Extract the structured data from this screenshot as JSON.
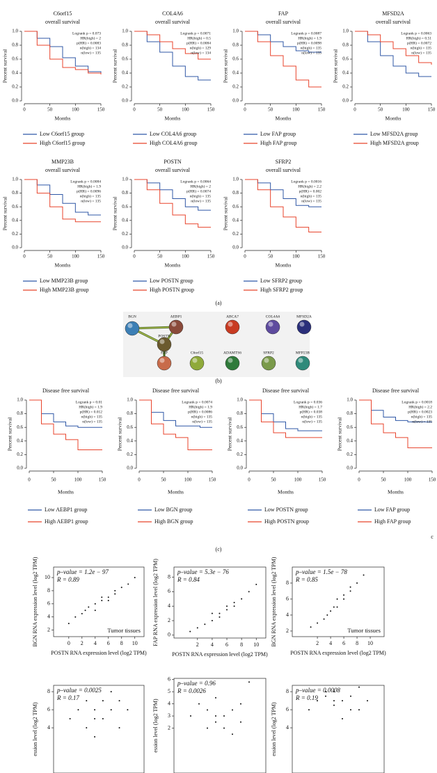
{
  "panels": [
    "(a)",
    "(b)",
    "(c)",
    "c"
  ],
  "network": {
    "nodes": [
      "BGN",
      "AEBP1",
      "ABCA7",
      "COL4A6",
      "MFSD2A",
      "POSTN",
      "FAP",
      "C6orf15",
      "ADAMTS6",
      "SFRP2",
      "MFP23B"
    ]
  },
  "chart_data": [
    {
      "type": "km",
      "title": "C6orf15",
      "subtitle": "overall survival",
      "x_label": "Months",
      "y_label": "Percent survival",
      "stats": [
        "Logrank p = 0.073",
        "HR(high) = 2",
        "p(HR) = 0.0083",
        "n(high) = 134",
        "n(low) = 135"
      ],
      "x": [
        0,
        25,
        50,
        75,
        100,
        125,
        150
      ],
      "xlim": [
        0,
        150
      ],
      "xticks": [
        0,
        50,
        100,
        150
      ],
      "ylim": [
        0,
        1
      ],
      "yticks": [
        {
          "value": 0,
          "label": "0.0"
        },
        0.2,
        0.4,
        0.6,
        0.8,
        {
          "value": 1,
          "label": "1.0"
        }
      ],
      "series": [
        {
          "name": "Low C6orf15 group",
          "color": "#2f57a6",
          "values": [
            1,
            0.9,
            0.78,
            0.62,
            0.5,
            0.42,
            0.4
          ]
        },
        {
          "name": "High C6orf15 group",
          "color": "#e8432b",
          "values": [
            1,
            0.8,
            0.6,
            0.48,
            0.45,
            0.4,
            0.38
          ]
        }
      ]
    },
    {
      "type": "km",
      "title": "COL4A6",
      "subtitle": "overall survival",
      "x_label": "Months",
      "y_label": "Percent survival",
      "stats": [
        "Logrank p = 0.0071",
        "HR(high) = 0.5",
        "p(HR) = 0.0084",
        "n(high) = 129",
        "n(low) = 134"
      ],
      "x": [
        0,
        25,
        50,
        75,
        100,
        125,
        150
      ],
      "xlim": [
        0,
        150
      ],
      "xticks": [
        0,
        50,
        100,
        150
      ],
      "ylim": [
        0,
        1
      ],
      "yticks": [
        {
          "value": 0,
          "label": "0.0"
        },
        0.2,
        0.4,
        0.6,
        0.8,
        {
          "value": 1,
          "label": "1.0"
        }
      ],
      "series": [
        {
          "name": "Low COL4A6 group",
          "color": "#2f57a6",
          "values": [
            1,
            0.85,
            0.7,
            0.5,
            0.35,
            0.3,
            0.3
          ]
        },
        {
          "name": "High COL4A6 group",
          "color": "#e8432b",
          "values": [
            1,
            0.95,
            0.85,
            0.75,
            0.68,
            0.6,
            0.6
          ]
        }
      ]
    },
    {
      "type": "km",
      "title": "FAP",
      "subtitle": "overall survival",
      "x_label": "Months",
      "y_label": "Percent survival",
      "stats": [
        "Logrank p = 0.0087",
        "HR(high) = 1.9",
        "p(HR) = 0.0098",
        "n(high) = 135",
        "n(low) = 135"
      ],
      "x": [
        0,
        25,
        50,
        75,
        100,
        125,
        150
      ],
      "xlim": [
        0,
        150
      ],
      "xticks": [
        0,
        50,
        100,
        150
      ],
      "ylim": [
        0,
        1
      ],
      "yticks": [
        {
          "value": 0,
          "label": "0.0"
        },
        0.2,
        0.4,
        0.6,
        0.8,
        {
          "value": 1,
          "label": "1.0"
        }
      ],
      "series": [
        {
          "name": "Low FAP group",
          "color": "#2f57a6",
          "values": [
            1,
            0.95,
            0.85,
            0.78,
            0.72,
            0.7,
            0.7
          ]
        },
        {
          "name": "High FAP group",
          "color": "#e8432b",
          "values": [
            1,
            0.85,
            0.65,
            0.5,
            0.3,
            0.2,
            0.2
          ]
        }
      ]
    },
    {
      "type": "km",
      "title": "MFSD2A",
      "subtitle": "overall survival",
      "x_label": "Months",
      "y_label": "Percent survival",
      "stats": [
        "Logrank p = 0.0063",
        "HR(high) = 0.51",
        "p(HR) = 0.0072",
        "n(high) = 135",
        "n(low) = 135"
      ],
      "x": [
        0,
        25,
        50,
        75,
        100,
        125,
        150
      ],
      "xlim": [
        0,
        150
      ],
      "xticks": [
        0,
        50,
        100,
        150
      ],
      "ylim": [
        0,
        1
      ],
      "yticks": [
        {
          "value": 0,
          "label": "0.0"
        },
        0.2,
        0.4,
        0.6,
        0.8,
        {
          "value": 1,
          "label": "1.0"
        }
      ],
      "series": [
        {
          "name": "Low MFSD2A group",
          "color": "#2f57a6",
          "values": [
            1,
            0.85,
            0.65,
            0.5,
            0.4,
            0.35,
            0.35
          ]
        },
        {
          "name": "High MFSD2A group",
          "color": "#e8432b",
          "values": [
            1,
            0.95,
            0.85,
            0.75,
            0.65,
            0.55,
            0.52
          ]
        }
      ]
    },
    {
      "type": "km",
      "title": "MMP23B",
      "subtitle": "overall survival",
      "x_label": "Months",
      "y_label": "Percent survival",
      "stats": [
        "Logrank p = 0.0084",
        "HR(high) = 1.9",
        "p(HR) = 0.0096",
        "n(high) = 135",
        "n(low) = 135"
      ],
      "x": [
        0,
        25,
        50,
        75,
        100,
        125,
        150
      ],
      "xlim": [
        0,
        150
      ],
      "xticks": [
        0,
        50,
        100,
        150
      ],
      "ylim": [
        0,
        1
      ],
      "yticks": [
        {
          "value": 0,
          "label": "0.0"
        },
        0.2,
        0.4,
        0.6,
        0.8,
        {
          "value": 1,
          "label": "1.0"
        }
      ],
      "series": [
        {
          "name": "Low MMP23B group",
          "color": "#2f57a6",
          "values": [
            1,
            0.92,
            0.78,
            0.65,
            0.52,
            0.48,
            0.48
          ]
        },
        {
          "name": "High MMP23B group",
          "color": "#e8432b",
          "values": [
            1,
            0.8,
            0.6,
            0.42,
            0.38,
            0.38,
            0.38
          ]
        }
      ]
    },
    {
      "type": "km",
      "title": "POSTN",
      "subtitle": "overall survival",
      "x_label": "Months",
      "y_label": "Percent survival",
      "stats": [
        "Logrank p = 0.0064",
        "HR(high) = 2",
        "p(HR) = 0.0074",
        "n(high) = 135",
        "n(low) = 135"
      ],
      "x": [
        0,
        25,
        50,
        75,
        100,
        125,
        150
      ],
      "xlim": [
        0,
        150
      ],
      "xticks": [
        0,
        50,
        100,
        150
      ],
      "ylim": [
        0,
        1
      ],
      "yticks": [
        {
          "value": 0,
          "label": "0.0"
        },
        0.2,
        0.4,
        0.6,
        0.8,
        {
          "value": 1,
          "label": "1.0"
        }
      ],
      "series": [
        {
          "name": "Low POSTN group",
          "color": "#2f57a6",
          "values": [
            1,
            0.95,
            0.85,
            0.72,
            0.6,
            0.55,
            0.55
          ]
        },
        {
          "name": "High POSTN group",
          "color": "#e8432b",
          "values": [
            1,
            0.85,
            0.65,
            0.48,
            0.35,
            0.3,
            0.3
          ]
        }
      ]
    },
    {
      "type": "km",
      "title": "SFRP2",
      "subtitle": "overall survival",
      "x_label": "Months",
      "y_label": "Percent survival",
      "stats": [
        "Logrank p = 0.0016",
        "HR(high) = 2.2",
        "p(HR) = 0.002",
        "n(high) = 135",
        "n(low) = 135"
      ],
      "x": [
        0,
        25,
        50,
        75,
        100,
        125,
        150
      ],
      "xlim": [
        0,
        150
      ],
      "xticks": [
        0,
        50,
        100,
        150
      ],
      "ylim": [
        0,
        1
      ],
      "yticks": [
        {
          "value": 0,
          "label": "0.0"
        },
        0.2,
        0.4,
        0.6,
        0.8,
        {
          "value": 1,
          "label": "1.0"
        }
      ],
      "series": [
        {
          "name": "Low SFRP2 group",
          "color": "#2f57a6",
          "values": [
            1,
            0.95,
            0.85,
            0.72,
            0.62,
            0.6,
            0.6
          ]
        },
        {
          "name": "High SFRP2 group",
          "color": "#e8432b",
          "values": [
            1,
            0.85,
            0.6,
            0.45,
            0.3,
            0.23,
            0.23
          ]
        }
      ]
    },
    {
      "type": "km",
      "title": "Disease free survival",
      "x_label": "Months",
      "y_label": "Percent survival",
      "stats": [
        "Logrank p = 0.01",
        "HR(high) = 1.9",
        "p(HR) = 0.012",
        "n(high) = 135",
        "n(low) = 135"
      ],
      "x": [
        0,
        25,
        50,
        75,
        100,
        125,
        150
      ],
      "xlim": [
        0,
        150
      ],
      "xticks": [
        0,
        50,
        100,
        150
      ],
      "ylim": [
        0,
        1
      ],
      "yticks": [
        {
          "value": 0,
          "label": "0.0"
        },
        0.2,
        0.4,
        0.6,
        0.8,
        {
          "value": 1,
          "label": "1.0"
        }
      ],
      "series": [
        {
          "name": "Low AEBP1 group",
          "color": "#2f57a6",
          "values": [
            1,
            0.8,
            0.68,
            0.62,
            0.6,
            0.6,
            0.6
          ]
        },
        {
          "name": "High AEBP1 group",
          "color": "#e8432b",
          "values": [
            1,
            0.65,
            0.5,
            0.42,
            0.27,
            0.27,
            0.27
          ]
        }
      ]
    },
    {
      "type": "km",
      "title": "Disease free survival",
      "x_label": "Months",
      "y_label": "Percent survival",
      "stats": [
        "Logrank p = 0.0074",
        "HR(high) = 1.9",
        "p(HR) = 0.0086",
        "n(high) = 135",
        "n(low) = 135"
      ],
      "x": [
        0,
        25,
        50,
        75,
        100,
        125,
        150
      ],
      "xlim": [
        0,
        150
      ],
      "xticks": [
        0,
        50,
        100,
        150
      ],
      "ylim": [
        0,
        1
      ],
      "yticks": [
        {
          "value": 0,
          "label": "0.0"
        },
        0.2,
        0.4,
        0.6,
        0.8,
        {
          "value": 1,
          "label": "1.0"
        }
      ],
      "series": [
        {
          "name": "Low BGN group",
          "color": "#2f57a6",
          "values": [
            1,
            0.82,
            0.7,
            0.62,
            0.62,
            0.6,
            0.6
          ]
        },
        {
          "name": "High BGN group",
          "color": "#e8432b",
          "values": [
            1,
            0.65,
            0.5,
            0.45,
            0.27,
            0.27,
            0.27
          ]
        }
      ]
    },
    {
      "type": "km",
      "title": "Disease free survival",
      "x_label": "Months",
      "y_label": "Percent survival",
      "stats": [
        "Logrank p = 0.036",
        "HR(high) = 1.7",
        "p(HR) = 0.038",
        "n(high) = 135",
        "n(low) = 135"
      ],
      "x": [
        0,
        25,
        50,
        75,
        100,
        125,
        150
      ],
      "xlim": [
        0,
        150
      ],
      "xticks": [
        0,
        50,
        100,
        150
      ],
      "ylim": [
        0,
        1
      ],
      "yticks": [
        {
          "value": 0,
          "label": "0.0"
        },
        0.2,
        0.4,
        0.6,
        0.8,
        {
          "value": 1,
          "label": "1.0"
        }
      ],
      "series": [
        {
          "name": "Low POSTN group",
          "color": "#2f57a6",
          "values": [
            1,
            0.8,
            0.68,
            0.58,
            0.55,
            0.55,
            0.55
          ]
        },
        {
          "name": "High POSTN group",
          "color": "#e8432b",
          "values": [
            1,
            0.68,
            0.52,
            0.45,
            0.45,
            0.45,
            0.45
          ]
        }
      ]
    },
    {
      "type": "km",
      "title": "Disease free survival",
      "x_label": "Months",
      "y_label": "Percent survival",
      "stats": [
        "Logrank p = 0.0018",
        "HR(high) = 2.2",
        "p(HR) = 0.0023",
        "n(high) = 135",
        "n(low) = 135"
      ],
      "x": [
        0,
        25,
        50,
        75,
        100,
        125,
        150
      ],
      "xlim": [
        0,
        150
      ],
      "xticks": [
        0,
        50,
        100,
        150
      ],
      "ylim": [
        0,
        1
      ],
      "yticks": [
        {
          "value": 0,
          "label": "0.0"
        },
        0.2,
        0.4,
        0.6,
        0.8,
        {
          "value": 1,
          "label": "1.0"
        }
      ],
      "series": [
        {
          "name": "Low FAP group",
          "color": "#2f57a6",
          "values": [
            1,
            0.85,
            0.75,
            0.7,
            0.68,
            0.68,
            0.68
          ]
        },
        {
          "name": "High FAP group",
          "color": "#e8432b",
          "values": [
            1,
            0.65,
            0.52,
            0.45,
            0.3,
            0.3,
            0.3
          ]
        }
      ]
    },
    {
      "type": "scatter",
      "stats": [
        "p–value = 1.2e − 97",
        "R = 0.89"
      ],
      "note": "Tumor tissues",
      "x_label": "POSTN RNA expression level (log2 TPM)",
      "y_label": "BGN RNA expression level (log2 TPM)",
      "color": "#111111",
      "xlim": [
        -2.3,
        11.4
      ],
      "xticks": [
        0,
        2,
        4,
        6,
        8,
        10
      ],
      "ylim": [
        1,
        11.6
      ],
      "yticks": [
        2,
        4,
        6,
        8,
        10
      ],
      "x": [
        0,
        1,
        2,
        2.5,
        3,
        4,
        4,
        5,
        5,
        6,
        6,
        7,
        7,
        8,
        9,
        10
      ],
      "values": [
        3,
        4,
        4.5,
        5,
        5.5,
        6,
        5,
        6.5,
        7,
        7,
        6.5,
        7.5,
        8,
        8.5,
        9,
        10
      ]
    },
    {
      "type": "scatter",
      "stats": [
        "p–value = 5.3e − 76",
        "R = 0.84"
      ],
      "x_label": "POSTN RNA expression level (log2 TPM)",
      "y_label": "FAP RNA expression level (log2 TPM)",
      "color": "#111111",
      "xlim": [
        -1.2,
        11.3
      ],
      "xticks": [
        2,
        4,
        6,
        8,
        10
      ],
      "ylim": [
        -0.4,
        9.4
      ],
      "yticks": [
        0,
        2,
        4,
        6,
        8
      ],
      "x": [
        1,
        2,
        3,
        4,
        4,
        5,
        5,
        6,
        6,
        7,
        7,
        8,
        9,
        10
      ],
      "values": [
        0.5,
        1,
        1.5,
        2,
        3,
        3,
        2.5,
        3.5,
        4,
        4.5,
        4,
        5,
        6,
        7
      ]
    },
    {
      "type": "scatter",
      "stats": [
        "p–value = 1.5e − 78",
        "R = 0.85"
      ],
      "note": "Tumor tissues",
      "x_label": "POSTN RNA expression level (log2 TPM)",
      "y_label": "BGN RNA expression level (log2 TPM)",
      "color": "#111111",
      "xlim": [
        -1.8,
        12.1
      ],
      "xticks": [
        2,
        4,
        6,
        8,
        10
      ],
      "ylim": [
        1.3,
        10
      ],
      "yticks": [
        2,
        4,
        6,
        8
      ],
      "x": [
        1,
        2,
        3,
        3.5,
        4,
        4.5,
        5,
        5,
        6,
        6,
        7,
        7,
        8,
        9
      ],
      "values": [
        2.5,
        3,
        3.5,
        4,
        4.5,
        5,
        5,
        6,
        6,
        6.5,
        7,
        7.5,
        8,
        9
      ]
    },
    {
      "type": "scatter",
      "stats": [
        "p–value = 0.0025",
        "R = 0.17"
      ],
      "y_label": "ession level (log2 TPM)",
      "color": "#111111",
      "xlim": [
        0,
        11
      ],
      "ylim": [
        -1,
        8.7
      ],
      "yticks": [
        4,
        6,
        8
      ],
      "x": [
        2,
        3,
        4,
        4,
        5,
        5,
        5,
        6,
        6,
        7,
        7,
        8,
        8,
        9
      ],
      "values": [
        5,
        6,
        4,
        7,
        5,
        6,
        3,
        7,
        5,
        6,
        8,
        4,
        7,
        6
      ]
    },
    {
      "type": "scatter",
      "stats": [
        "p–value = 0.96",
        "R = 0.0026"
      ],
      "y_label": "ession level (log2 TPM)",
      "color": "#111111",
      "xlim": [
        0,
        11
      ],
      "ylim": [
        -1.7,
        6.1
      ],
      "yticks": [
        2,
        3,
        4,
        5,
        6
      ],
      "x": [
        2,
        3,
        4,
        4,
        5,
        5,
        5,
        6,
        6,
        7,
        7,
        8,
        8,
        9
      ],
      "values": [
        3,
        4,
        2,
        3.5,
        2.5,
        3,
        4.5,
        2,
        3,
        3.5,
        1.5,
        4,
        2.5,
        5.8
      ]
    },
    {
      "type": "scatter",
      "stats": [
        "p–value = 0.0008",
        "R = 0.19"
      ],
      "y_label": "ession level (log2 TPM)",
      "color": "#111111",
      "xlim": [
        0,
        11
      ],
      "ylim": [
        -1,
        8.7
      ],
      "yticks": [
        4,
        6,
        8
      ],
      "x": [
        2,
        3,
        4,
        4,
        5,
        5,
        5,
        6,
        6,
        7,
        7,
        8,
        8,
        9
      ],
      "values": [
        6,
        7,
        8,
        7.5,
        6.5,
        7,
        8,
        5,
        7,
        6,
        7.5,
        8.5,
        6,
        7
      ]
    }
  ]
}
